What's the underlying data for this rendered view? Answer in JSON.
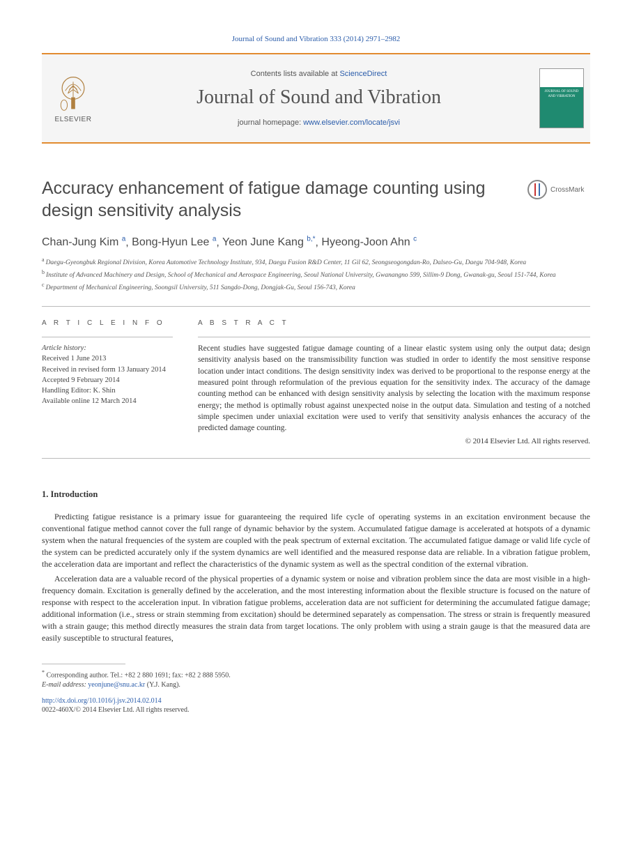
{
  "citation": "Journal of Sound and Vibration 333 (2014) 2971–2982",
  "masthead": {
    "publisher_name": "ELSEVIER",
    "contents_prefix": "Contents lists available at ",
    "contents_link": "ScienceDirect",
    "journal_name": "Journal of Sound and Vibration",
    "homepage_prefix": "journal homepage: ",
    "homepage_url": "www.elsevier.com/locate/jsvi",
    "cover_text": "JOURNAL OF SOUND AND VIBRATION"
  },
  "crossmark_label": "CrossMark",
  "article": {
    "title": "Accuracy enhancement of fatigue damage counting using design sensitivity analysis",
    "authors_html": "Chan-Jung Kim",
    "authors": [
      {
        "name": "Chan-Jung Kim",
        "aff": "a"
      },
      {
        "name": "Bong-Hyun Lee",
        "aff": "a"
      },
      {
        "name": "Yeon June Kang",
        "aff": "b",
        "corr": true
      },
      {
        "name": "Hyeong-Joon Ahn",
        "aff": "c"
      }
    ],
    "affiliations": [
      {
        "label": "a",
        "text": "Daegu-Gyeongbuk Regional Division, Korea Automotive Technology Institute, 934, Daegu Fusion R&D Center, 11 Gil 62, Seongseogongdan-Ro, Dalseo-Gu, Daegu 704-948, Korea"
      },
      {
        "label": "b",
        "text": "Institute of Advanced Machinery and Design, School of Mechanical and Aerospace Engineering, Seoul National University, Gwanangno 599, Sillim-9 Dong, Gwanak-gu, Seoul 151-744, Korea"
      },
      {
        "label": "c",
        "text": "Department of Mechanical Engineering, Soongsil University, 511 Sangdo-Dong, Dongjak-Gu, Seoul 156-743, Korea"
      }
    ]
  },
  "info": {
    "heading": "A R T I C L E   I N F O",
    "history_label": "Article history:",
    "received": "Received 1 June 2013",
    "revised": "Received in revised form 13 January 2014",
    "accepted": "Accepted 9 February 2014",
    "editor": "Handling Editor: K. Shin",
    "online": "Available online 12 March 2014"
  },
  "abstract": {
    "heading": "A B S T R A C T",
    "text": "Recent studies have suggested fatigue damage counting of a linear elastic system using only the output data; design sensitivity analysis based on the transmissibility function was studied in order to identify the most sensitive response location under intact conditions. The design sensitivity index was derived to be proportional to the response energy at the measured point through reformulation of the previous equation for the sensitivity index. The accuracy of the damage counting method can be enhanced with design sensitivity analysis by selecting the location with the maximum response energy; the method is optimally robust against unexpected noise in the output data. Simulation and testing of a notched simple specimen under uniaxial excitation were used to verify that sensitivity analysis enhances the accuracy of the predicted damage counting.",
    "copyright": "© 2014 Elsevier Ltd. All rights reserved."
  },
  "intro": {
    "heading": "1.  Introduction",
    "p1": "Predicting fatigue resistance is a primary issue for guaranteeing the required life cycle of operating systems in an excitation environment because the conventional fatigue method cannot cover the full range of dynamic behavior by the system. Accumulated fatigue damage is accelerated at hotspots of a dynamic system when the natural frequencies of the system are coupled with the peak spectrum of external excitation. The accumulated fatigue damage or valid life cycle of the system can be predicted accurately only if the system dynamics are well identified and the measured response data are reliable. In a vibration fatigue problem, the acceleration data are important and reflect the characteristics of the dynamic system as well as the spectral condition of the external vibration.",
    "p2": "Acceleration data are a valuable record of the physical properties of a dynamic system or noise and vibration problem since the data are most visible in a high-frequency domain. Excitation is generally defined by the acceleration, and the most interesting information about the flexible structure is focused on the nature of response with respect to the acceleration input. In vibration fatigue problems, acceleration data are not sufficient for determining the accumulated fatigue damage; additional information (i.e., stress or strain stemming from excitation) should be determined separately as compensation. The stress or strain is frequently measured with a strain gauge; this method directly measures the strain data from target locations. The only problem with using a strain gauge is that the measured data are easily susceptible to structural features,"
  },
  "footnote": {
    "corr": "Corresponding author. Tel.: +82 2 880 1691; fax: +82 2 888 5950.",
    "email_label": "E-mail address:",
    "email": "yeonjune@snu.ac.kr",
    "email_who": "(Y.J. Kang)."
  },
  "doi": "http://dx.doi.org/10.1016/j.jsv.2014.02.014",
  "issn": "0022-460X/© 2014 Elsevier Ltd. All rights reserved.",
  "colors": {
    "orange_rule": "#e28b2f",
    "link_blue": "#2a5caa",
    "cover_green": "#1f8a70",
    "text_gray": "#4a4a4a"
  }
}
